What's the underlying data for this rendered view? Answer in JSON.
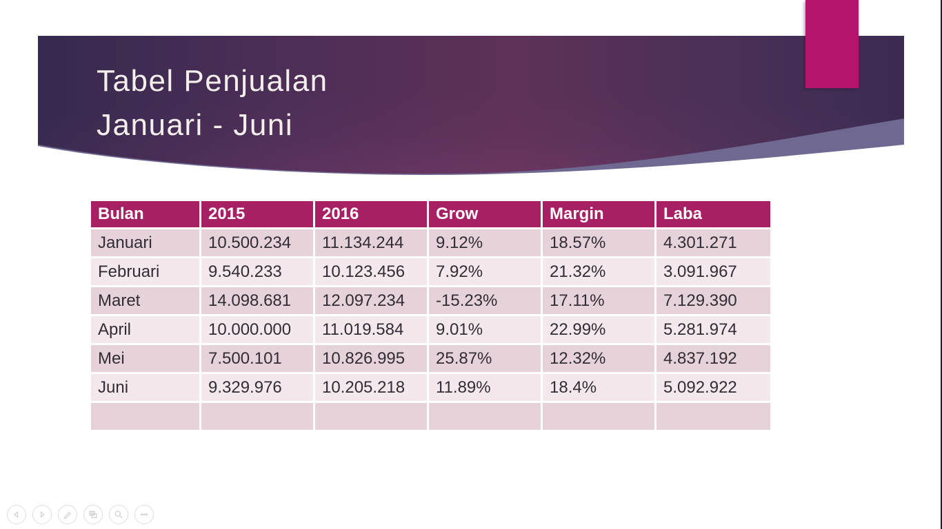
{
  "slide": {
    "title_line1": "Tabel Penjualan",
    "title_line2": "Januari - Juni"
  },
  "table": {
    "headers": [
      "Bulan",
      "2015",
      "2016",
      "Grow",
      "Margin",
      "Laba"
    ],
    "rows": [
      [
        "Januari",
        "10.500.234",
        "11.134.244",
        "9.12%",
        "18.57%",
        "4.301.271"
      ],
      [
        "Februari",
        "9.540.233",
        "10.123.456",
        "7.92%",
        "21.32%",
        "3.091.967"
      ],
      [
        "Maret",
        "14.098.681",
        "12.097.234",
        "-15.23%",
        "17.11%",
        "7.129.390"
      ],
      [
        "April",
        "10.000.000",
        "11.019.584",
        "9.01%",
        "22.99%",
        "5.281.974"
      ],
      [
        "Mei",
        "7.500.101",
        "10.826.995",
        "25.87%",
        "12.32%",
        "4.837.192"
      ],
      [
        "Juni",
        "9.329.976",
        "10.205.218",
        "11.89%",
        "18.4%",
        "5.092.922"
      ],
      [
        "",
        "",
        "",
        "",
        "",
        ""
      ]
    ]
  },
  "nav_controls": {
    "items": [
      {
        "icon": "previous-arrow-icon"
      },
      {
        "icon": "next-arrow-icon"
      },
      {
        "icon": "pen-icon"
      },
      {
        "icon": "all-slides-icon"
      },
      {
        "icon": "zoom-icon"
      },
      {
        "icon": "more-options-icon"
      }
    ]
  },
  "colors": {
    "accent_magenta": "#B5156C",
    "table_header_magenta": "#A82064",
    "row_dark_pink": "#E6D2D9",
    "row_light_pink": "#F3E9EC",
    "banner_indigo": "#362A4E",
    "banner_plum": "#5E3158",
    "banner_light_band": "#6F6890",
    "title_text": "#F4EFEB",
    "cell_text": "#322C35"
  }
}
